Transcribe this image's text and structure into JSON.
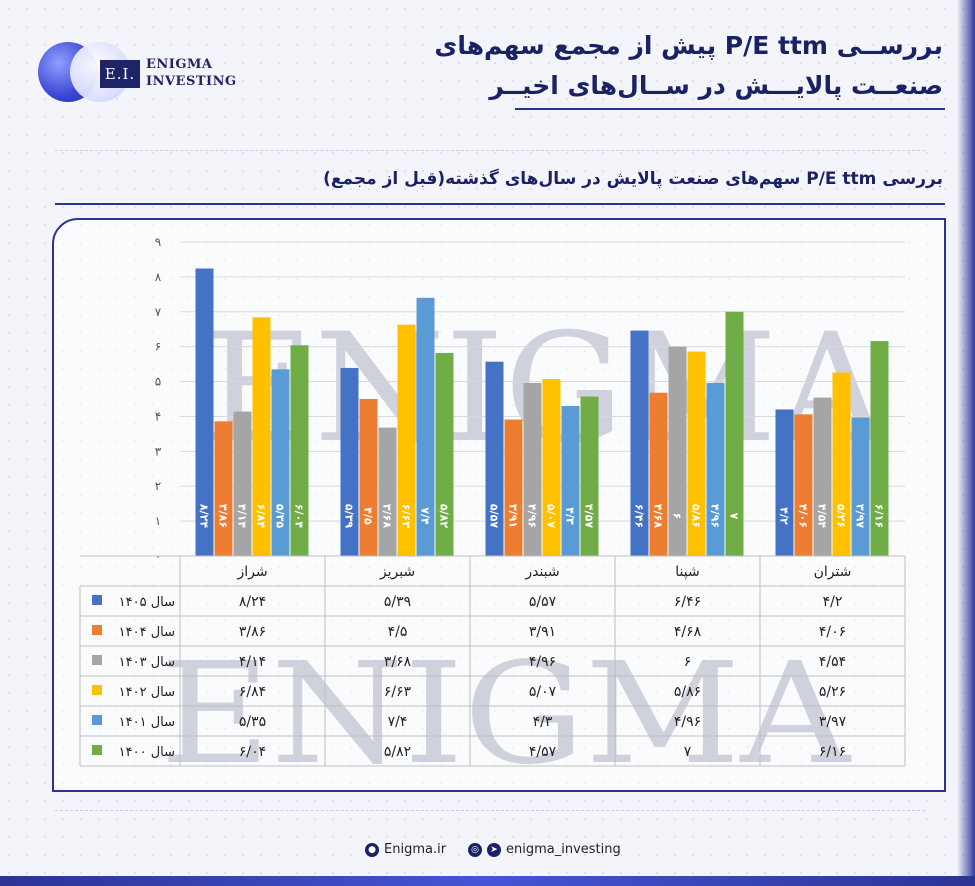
{
  "header": {
    "logo_mark": "E.I.",
    "logo_line1": "ENIGMA",
    "logo_line2": "INVESTING",
    "title_line1": "بررســی P/E ttm پیش از مجمع سهم‌های",
    "title_line2": "صنعــت پالایـــش در ســال‌های اخیــر"
  },
  "subtitle": "بررسی P/E ttm سهم‌های صنعت پالایش در سال‌های گذشته(قبل از مجمع)",
  "watermark": "ENIGMA",
  "colors": {
    "s1405": "#4472c4",
    "s1404": "#ed7d31",
    "s1403": "#a5a5a5",
    "s1402": "#ffc000",
    "s1401": "#5b9bd5",
    "s1400": "#70ad47",
    "accent": "#2b3494"
  },
  "chart_data": {
    "type": "bar",
    "categories": [
      "شراز",
      "شبریز",
      "شبندر",
      "شپنا",
      "شتران"
    ],
    "ylim": [
      0,
      9
    ],
    "yticks": [
      "۰",
      "۱",
      "۲",
      "۳",
      "۴",
      "۵",
      "۶",
      "۷",
      "۸",
      "۹"
    ],
    "grid": true,
    "legend": "table-left",
    "series": [
      {
        "name": "سال ۱۴۰۵",
        "color_key": "s1405",
        "values": [
          8.24,
          5.39,
          5.57,
          6.46,
          4.2
        ],
        "labels": [
          "۸/۲۴",
          "۵/۳۹",
          "۵/۵۷",
          "۶/۴۶",
          "۴/۲"
        ]
      },
      {
        "name": "سال ۱۴۰۴",
        "color_key": "s1404",
        "values": [
          3.86,
          4.5,
          3.91,
          4.68,
          4.06
        ],
        "labels": [
          "۳/۸۶",
          "۴/۵",
          "۳/۹۱",
          "۴/۶۸",
          "۴/۰۶"
        ]
      },
      {
        "name": "سال ۱۴۰۳",
        "color_key": "s1403",
        "values": [
          4.14,
          3.68,
          4.96,
          6,
          4.54
        ],
        "labels": [
          "۴/۱۴",
          "۳/۶۸",
          "۴/۹۶",
          "۶",
          "۴/۵۴"
        ]
      },
      {
        "name": "سال ۱۴۰۲",
        "color_key": "s1402",
        "values": [
          6.84,
          6.63,
          5.07,
          5.86,
          5.26
        ],
        "labels": [
          "۶/۸۴",
          "۶/۶۳",
          "۵/۰۷",
          "۵/۸۶",
          "۵/۲۶"
        ]
      },
      {
        "name": "سال ۱۴۰۱",
        "color_key": "s1401",
        "values": [
          5.35,
          7.4,
          4.3,
          4.96,
          3.97
        ],
        "labels": [
          "۵/۳۵",
          "۷/۴",
          "۴/۳",
          "۴/۹۶",
          "۳/۹۷"
        ]
      },
      {
        "name": "سال ۱۴۰۰",
        "color_key": "s1400",
        "values": [
          6.04,
          5.82,
          4.57,
          7,
          6.16
        ],
        "labels": [
          "۶/۰۴",
          "۵/۸۲",
          "۴/۵۷",
          "۷",
          "۶/۱۶"
        ]
      }
    ]
  },
  "footer": {
    "site": "Enigma.ir",
    "social": "enigma_investing"
  }
}
